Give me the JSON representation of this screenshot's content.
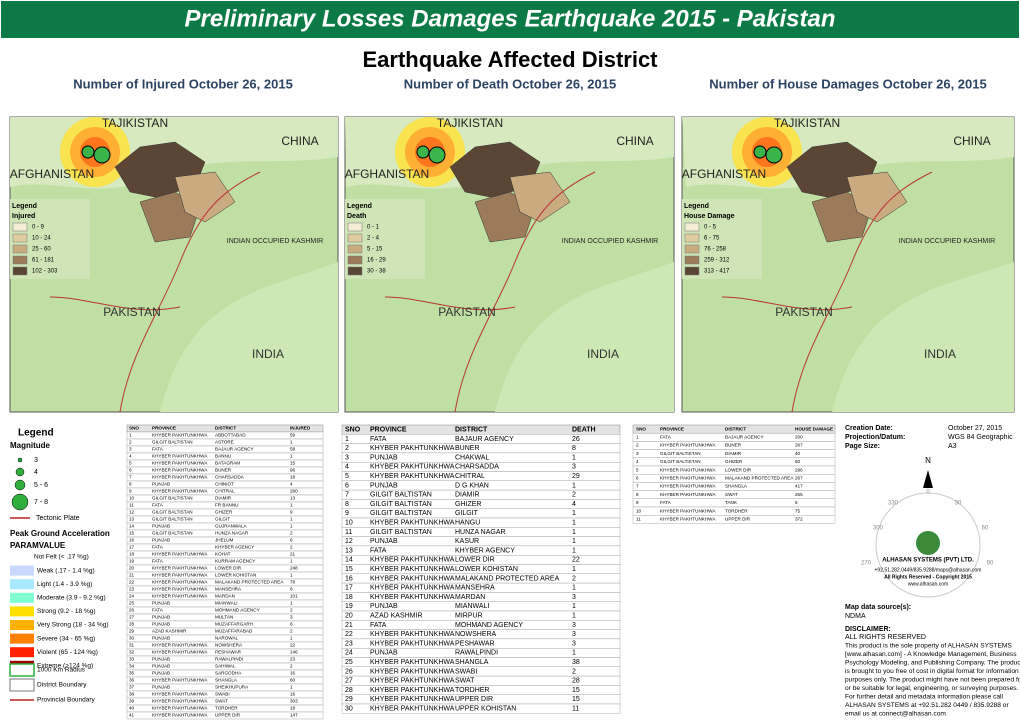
{
  "header": {
    "title": "Preliminary Losses Damages Earthquake 2015 - Pakistan",
    "subtitle": "Earthquake Affected District"
  },
  "maps": [
    {
      "title": "Number of Injured October 26, 2015",
      "labels": [
        "TAJIKISTAN",
        "CHINA",
        "AFGHANISTAN",
        "INDIAN OCCUPIED KASHMIR",
        "PAKISTAN",
        "INDIA"
      ],
      "legend_title": "Legend",
      "legend_field": "Injured",
      "classes": [
        "0 - 9",
        "10 - 24",
        "25 - 60",
        "61 - 181",
        "102 - 303"
      ]
    },
    {
      "title": "Number of Death October 26, 2015",
      "labels": [
        "TAJIKISTAN",
        "CHINA",
        "AFGHANISTAN",
        "INDIAN OCCUPIED KASHMIR",
        "PAKISTAN",
        "INDIA"
      ],
      "legend_title": "Legend",
      "legend_field": "Death",
      "classes": [
        "0 - 1",
        "2 - 4",
        "5 - 15",
        "16 - 29",
        "30 - 38"
      ]
    },
    {
      "title": "Number of House Damages October 26, 2015",
      "labels": [
        "TAJIKISTAN",
        "CHINA",
        "AFGHANISTAN",
        "INDIAN OCCUPIED KASHMIR",
        "PAKISTAN",
        "INDIA"
      ],
      "legend_title": "Legend",
      "legend_field": "House Damage",
      "classes": [
        "0 - 5",
        "6 - 75",
        "76 - 258",
        "259 - 312",
        "313 - 417"
      ]
    }
  ],
  "legend": {
    "title": "Legend",
    "magnitude": "Magnitude",
    "magnitudes": [
      "3",
      "4",
      "5 - 6",
      "7 - 8"
    ],
    "tectonic": "Tectonic Plate",
    "pga": "Peak Ground Acceleration",
    "paramvalue": "PARAMVALUE",
    "pga_classes": [
      "Not Felt (< .17 %g)",
      "Weak (.17 - 1.4 %g)",
      "Light (1.4 - 3.9 %g)",
      "Moderate (3.9 - 9.2 %g)",
      "Strong (9.2 - 18 %g)",
      "Very Strong (18 - 34 %g)",
      "Severe (34 - 65 %g)",
      "Violent (65 - 124 %g)",
      "Extreme (>124 %g)"
    ],
    "radius": "1000 Km Radius",
    "district": "District Boundary",
    "provincial": "Provincial Boundary"
  },
  "tables": [
    {
      "columns": [
        "SNO",
        "PROVINCE",
        "DISTRICT",
        "INJURED"
      ],
      "rows": [
        [
          1,
          "KHYBER PAKHTUNKHWA",
          "ABBOTTABAD",
          59
        ],
        [
          2,
          "GILGIT BALTISTAN",
          "ASTORE",
          1
        ],
        [
          3,
          "FATA",
          "BAJAUR AGENCY",
          58
        ],
        [
          4,
          "KHYBER PAKHTUNKHWA",
          "BANNU",
          1
        ],
        [
          5,
          "KHYBER PAKHTUNKHWA",
          "BATAGRAM",
          15
        ],
        [
          6,
          "KHYBER PAKHTUNKHWA",
          "BUNER",
          96
        ],
        [
          7,
          "KHYBER PAKHTUNKHWA",
          "CHARSADDA",
          18
        ],
        [
          8,
          "PUNJAB",
          "CHINIOT",
          4
        ],
        [
          9,
          "KHYBER PAKHTUNKHWA",
          "CHITRAL",
          260
        ],
        [
          10,
          "GILGIT BALTISTAN",
          "DIAMIR",
          13
        ],
        [
          11,
          "FATA",
          "FR BANNU",
          1
        ],
        [
          12,
          "GILGIT BALTISTAN",
          "GHIZER",
          9
        ],
        [
          13,
          "GILGIT BALTISTAN",
          "GILGIT",
          1
        ],
        [
          14,
          "PUNJAB",
          "GUJRANWALA",
          1
        ],
        [
          15,
          "GILGIT BALTISTAN",
          "HUNZA NAGAR",
          2
        ],
        [
          16,
          "PUNJAB",
          "JHELUM",
          6
        ],
        [
          17,
          "FATA",
          "KHYBER AGENCY",
          2
        ],
        [
          18,
          "KHYBER PAKHTUNKHWA",
          "KOHAT",
          21
        ],
        [
          19,
          "FATA",
          "KURRAM AGENCY",
          1
        ],
        [
          20,
          "KHYBER PAKHTUNKHWA",
          "LOWER DIR",
          248
        ],
        [
          21,
          "KHYBER PAKHTUNKHWA",
          "LOWER KOHISTAN",
          1
        ],
        [
          22,
          "KHYBER PAKHTUNKHWA",
          "MALAKAND PROTECTED AREA",
          78
        ],
        [
          23,
          "KHYBER PAKHTUNKHWA",
          "MANSEHRA",
          6
        ],
        [
          24,
          "KHYBER PAKHTUNKHWA",
          "MARDAN",
          101
        ],
        [
          25,
          "PUNJAB",
          "MIANWALI",
          1
        ],
        [
          26,
          "FATA",
          "MOHMAND AGENCY",
          2
        ],
        [
          27,
          "PUNJAB",
          "MULTAN",
          3
        ],
        [
          28,
          "PUNJAB",
          "MUZAFFARGARH",
          6
        ],
        [
          29,
          "AZAD KASHMIR",
          "MUZAFFARABAD",
          2
        ],
        [
          30,
          "PUNJAB",
          "NAROWAL",
          1
        ],
        [
          31,
          "KHYBER PAKHTUNKHWA",
          "NOWSHERA",
          22
        ],
        [
          32,
          "KHYBER PAKHTUNKHWA",
          "PESHAWAR",
          146
        ],
        [
          33,
          "PUNJAB",
          "RAWALPINDI",
          23
        ],
        [
          34,
          "PUNJAB",
          "SAHIWAL",
          2
        ],
        [
          35,
          "PUNJAB",
          "SARGODHA",
          16
        ],
        [
          36,
          "KHYBER PAKHTUNKHWA",
          "SHANGLA",
          60
        ],
        [
          37,
          "PUNJAB",
          "SHEIKHUPURA",
          1
        ],
        [
          38,
          "KHYBER PAKHTUNKHWA",
          "SWABI",
          16
        ],
        [
          39,
          "KHYBER PAKHTUNKHWA",
          "SWAT",
          303
        ],
        [
          40,
          "KHYBER PAKHTUNKHWA",
          "TORDHER",
          18
        ],
        [
          41,
          "KHYBER PAKHTUNKHWA",
          "UPPER DIR",
          147
        ]
      ]
    },
    {
      "columns": [
        "SNO",
        "PROVINCE",
        "DISTRICT",
        "DEATH"
      ],
      "rows": [
        [
          1,
          "FATA",
          "BAJAUR AGENCY",
          26
        ],
        [
          2,
          "KHYBER PAKHTUNKHWA",
          "BUNER",
          8
        ],
        [
          3,
          "PUNJAB",
          "CHAKWAL",
          1
        ],
        [
          4,
          "KHYBER PAKHTUNKHWA",
          "CHARSADDA",
          3
        ],
        [
          5,
          "KHYBER PAKHTUNKHWA",
          "CHITRAL",
          29
        ],
        [
          6,
          "PUNJAB",
          "D G KHAN",
          1
        ],
        [
          7,
          "GILGIT BALTISTAN",
          "DIAMIR",
          2
        ],
        [
          8,
          "GILGIT BALTISTAN",
          "GHIZER",
          4
        ],
        [
          9,
          "GILGIT BALTISTAN",
          "GILGIT",
          1
        ],
        [
          10,
          "KHYBER PAKHTUNKHWA",
          "HANGU",
          1
        ],
        [
          11,
          "GILGIT BALTISTAN",
          "HUNZA NAGAR",
          1
        ],
        [
          12,
          "PUNJAB",
          "KASUR",
          1
        ],
        [
          13,
          "FATA",
          "KHYBER AGENCY",
          1
        ],
        [
          14,
          "KHYBER PAKHTUNKHWA",
          "LOWER DIR",
          22
        ],
        [
          15,
          "KHYBER PAKHTUNKHWA",
          "LOWER KOHISTAN",
          1
        ],
        [
          16,
          "KHYBER PAKHTUNKHWA",
          "MALAKAND PROTECTED AREA",
          2
        ],
        [
          17,
          "KHYBER PAKHTUNKHWA",
          "MANSEHRA",
          1
        ],
        [
          18,
          "KHYBER PAKHTUNKHWA",
          "MARDAN",
          3
        ],
        [
          19,
          "PUNJAB",
          "MIANWALI",
          1
        ],
        [
          20,
          "AZAD KASHMIR",
          "MIRPUR",
          1
        ],
        [
          21,
          "FATA",
          "MOHMAND AGENCY",
          3
        ],
        [
          22,
          "KHYBER PAKHTUNKHWA",
          "NOWSHERA",
          3
        ],
        [
          23,
          "KHYBER PAKHTUNKHWA",
          "PESHAWAR",
          3
        ],
        [
          24,
          "PUNJAB",
          "RAWALPINDI",
          1
        ],
        [
          25,
          "KHYBER PAKHTUNKHWA",
          "SHANGLA",
          38
        ],
        [
          26,
          "KHYBER PAKHTUNKHWA",
          "SWABI",
          2
        ],
        [
          27,
          "KHYBER PAKHTUNKHWA",
          "SWAT",
          28
        ],
        [
          28,
          "KHYBER PAKHTUNKHWA",
          "TORDHER",
          15
        ],
        [
          29,
          "KHYBER PAKHTUNKHWA",
          "UPPER DIR",
          15
        ],
        [
          30,
          "KHYBER PAKHTUNKHWA",
          "UPPER KOHISTAN",
          11
        ]
      ]
    },
    {
      "columns": [
        "SNO",
        "PROVINCE",
        "DISTRICT",
        "HOUSE DAMAGE"
      ],
      "rows": [
        [
          1,
          "FATA",
          "BAJAUR AGENCY",
          200
        ],
        [
          2,
          "KHYBER PAKHTUNKHWA",
          "BUNER",
          267
        ],
        [
          3,
          "GILGIT BALTISTAN",
          "DIAMIR",
          40
        ],
        [
          4,
          "GILGIT BALTISTAN",
          "GHIZER",
          50
        ],
        [
          5,
          "KHYBER PAKHTUNKHWA",
          "LOWER DIR",
          296
        ],
        [
          6,
          "KHYBER PAKHTUNKHWA",
          "MALAKAND PROTECTED AREA",
          267
        ],
        [
          7,
          "KHYBER PAKHTUNKHWA",
          "SHANGLA",
          417
        ],
        [
          8,
          "KHYBER PAKHTUNKHWA",
          "SWAT",
          255
        ],
        [
          9,
          "FATA",
          "TANK",
          5
        ],
        [
          10,
          "KHYBER PAKHTUNKHWA",
          "TORDHER",
          75
        ],
        [
          11,
          "KHYBER PAKHTUNKHWA",
          "UPPER DIR",
          372
        ]
      ]
    }
  ],
  "info": {
    "creation_label": "Creation Date:",
    "creation": "October 27, 2015",
    "projection_label": "Projection/Datum:",
    "projection": "WGS 84 Geographic",
    "page_label": "Page Size:",
    "page": "A3",
    "north": "N",
    "compass": [
      "0",
      "30",
      "60",
      "90",
      "270",
      "300",
      "330"
    ],
    "company": "ALHASAN SYSTEMS (PVT) LTD.",
    "contact": "+92.51.282.0449/835.9288/maps@alhasan.com",
    "copyright": "All Rights Reserved - Copyright 2015",
    "web": "www.alhasan.com",
    "source_label": "Map data source(s):",
    "source": "NDMA",
    "disclaimer_label": "DISCLAIMER:",
    "rights": "ALL RIGHTS RESERVED",
    "disclaimer": [
      "This product is the sole property of ALHASAN SYSTEMS",
      "[www.alhasan.com] - A Knowledge Management, Business",
      "Psychology Modeling, and Publishing Company. The product",
      "is brought to you free of cost in digital format for information",
      "purposes only. The product might have not been prepared for",
      "or be suitable for legal, engineering, or surveying purposes.",
      "For further detail and metadata information please call",
      "ALHASAN SYSTEMS at +92.51.282 0449  /  835.9288 or",
      "email us at connect@alhasan.com"
    ]
  }
}
